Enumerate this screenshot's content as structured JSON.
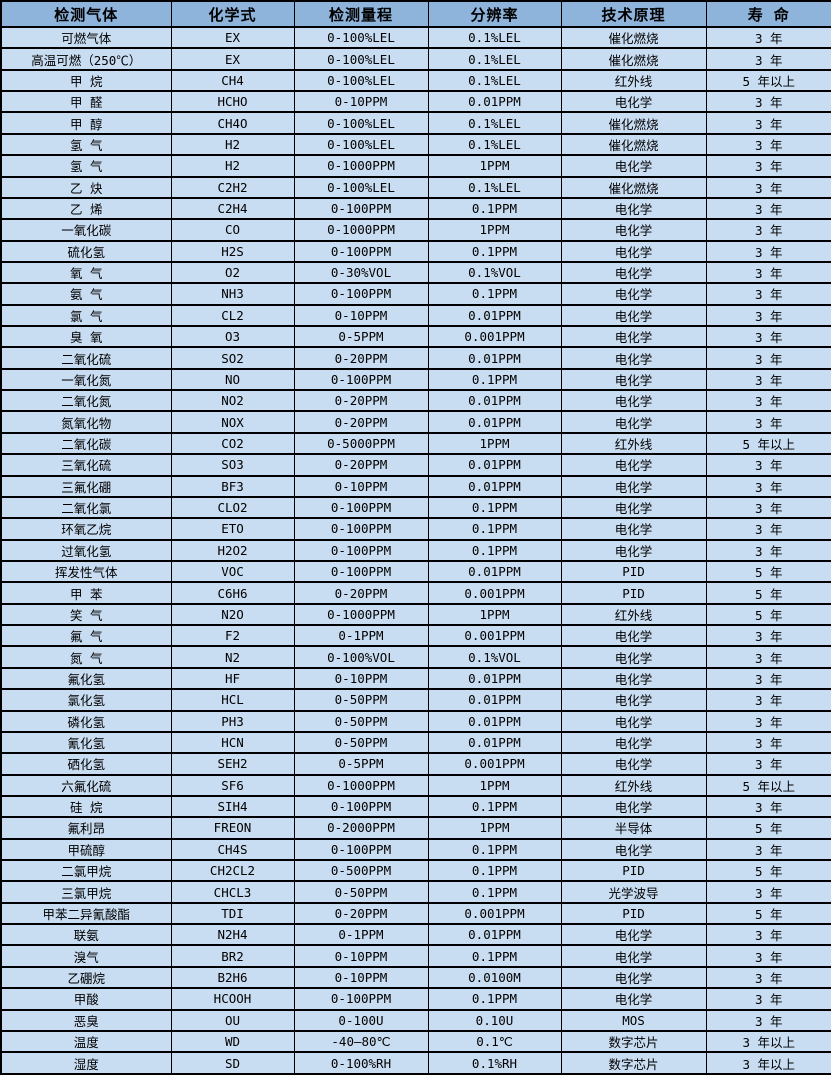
{
  "colors": {
    "header_bg": "#8eb4dc",
    "row_bg": "#c9ddf2",
    "border": "#000000",
    "text": "#000000"
  },
  "table": {
    "columns": [
      "检测气体",
      "化学式",
      "检测量程",
      "分辨率",
      "技术原理",
      "寿 命"
    ],
    "column_keys": [
      "gas",
      "formula",
      "range",
      "resolution",
      "principle",
      "lifespan"
    ],
    "rows": [
      [
        "可燃气体",
        "EX",
        "0-100%LEL",
        "0.1%LEL",
        "催化燃烧",
        "3 年"
      ],
      [
        "高温可燃（250℃）",
        "EX",
        "0-100%LEL",
        "0.1%LEL",
        "催化燃烧",
        "3 年"
      ],
      [
        "甲 烷",
        "CH4",
        "0-100%LEL",
        "0.1%LEL",
        "红外线",
        "5 年以上"
      ],
      [
        "甲 醛",
        "HCHO",
        "0-10PPM",
        "0.01PPM",
        "电化学",
        "3 年"
      ],
      [
        "甲 醇",
        "CH4O",
        "0-100%LEL",
        "0.1%LEL",
        "催化燃烧",
        "3 年"
      ],
      [
        "氢 气",
        "H2",
        "0-100%LEL",
        "0.1%LEL",
        "催化燃烧",
        "3 年"
      ],
      [
        "氢 气",
        "H2",
        "0-1000PPM",
        "1PPM",
        "电化学",
        "3 年"
      ],
      [
        "乙 炔",
        "C2H2",
        "0-100%LEL",
        "0.1%LEL",
        "催化燃烧",
        "3 年"
      ],
      [
        "乙 烯",
        "C2H4",
        "0-100PPM",
        "0.1PPM",
        "电化学",
        "3 年"
      ],
      [
        "一氧化碳",
        "CO",
        "0-1000PPM",
        "1PPM",
        "电化学",
        "3 年"
      ],
      [
        "硫化氢",
        "H2S",
        "0-100PPM",
        "0.1PPM",
        "电化学",
        "3 年"
      ],
      [
        "氧 气",
        "O2",
        "0-30%VOL",
        "0.1%VOL",
        "电化学",
        "3 年"
      ],
      [
        "氨 气",
        "NH3",
        "0-100PPM",
        "0.1PPM",
        "电化学",
        "3 年"
      ],
      [
        "氯 气",
        "CL2",
        "0-10PPM",
        "0.01PPM",
        "电化学",
        "3 年"
      ],
      [
        "臭 氧",
        "O3",
        "0-5PPM",
        "0.001PPM",
        "电化学",
        "3 年"
      ],
      [
        "二氧化硫",
        "SO2",
        "0-20PPM",
        "0.01PPM",
        "电化学",
        "3 年"
      ],
      [
        "一氧化氮",
        "NO",
        "0-100PPM",
        "0.1PPM",
        "电化学",
        "3 年"
      ],
      [
        "二氧化氮",
        "NO2",
        "0-20PPM",
        "0.01PPM",
        "电化学",
        "3 年"
      ],
      [
        "氮氧化物",
        "NOX",
        "0-20PPM",
        "0.01PPM",
        "电化学",
        "3 年"
      ],
      [
        "二氧化碳",
        "CO2",
        "0-5000PPM",
        "1PPM",
        "红外线",
        "5 年以上"
      ],
      [
        "三氧化硫",
        "SO3",
        "0-20PPM",
        "0.01PPM",
        "电化学",
        "3 年"
      ],
      [
        "三氟化硼",
        "BF3",
        "0-10PPM",
        "0.01PPM",
        "电化学",
        "3 年"
      ],
      [
        "二氧化氯",
        "CLO2",
        "0-100PPM",
        "0.1PPM",
        "电化学",
        "3 年"
      ],
      [
        "环氧乙烷",
        "ETO",
        "0-100PPM",
        "0.1PPM",
        "电化学",
        "3 年"
      ],
      [
        "过氧化氢",
        "H2O2",
        "0-100PPM",
        "0.1PPM",
        "电化学",
        "3 年"
      ],
      [
        "挥发性气体",
        "VOC",
        "0-100PPM",
        "0.01PPM",
        "PID",
        "5 年"
      ],
      [
        "甲 苯",
        "C6H6",
        "0-20PPM",
        "0.001PPM",
        "PID",
        "5 年"
      ],
      [
        "笑 气",
        "N2O",
        "0-1000PPM",
        "1PPM",
        "红外线",
        "5 年"
      ],
      [
        "氟 气",
        "F2",
        "0-1PPM",
        "0.001PPM",
        "电化学",
        "3 年"
      ],
      [
        "氮 气",
        "N2",
        "0-100%VOL",
        "0.1%VOL",
        "电化学",
        "3 年"
      ],
      [
        "氟化氢",
        "HF",
        "0-10PPM",
        "0.01PPM",
        "电化学",
        "3 年"
      ],
      [
        "氯化氢",
        "HCL",
        "0-50PPM",
        "0.01PPM",
        "电化学",
        "3 年"
      ],
      [
        "磷化氢",
        "PH3",
        "0-50PPM",
        "0.01PPM",
        "电化学",
        "3 年"
      ],
      [
        "氰化氢",
        "HCN",
        "0-50PPM",
        "0.01PPM",
        "电化学",
        "3 年"
      ],
      [
        "硒化氢",
        "SEH2",
        "0-5PPM",
        "0.001PPM",
        "电化学",
        "3 年"
      ],
      [
        "六氟化硫",
        "SF6",
        "0-1000PPM",
        "1PPM",
        "红外线",
        "5 年以上"
      ],
      [
        "硅 烷",
        "SIH4",
        "0-100PPM",
        "0.1PPM",
        "电化学",
        "3 年"
      ],
      [
        "氟利昂",
        "FREON",
        "0-2000PPM",
        "1PPM",
        "半导体",
        "5 年"
      ],
      [
        "甲硫醇",
        "CH4S",
        "0-100PPM",
        "0.1PPM",
        "电化学",
        "3 年"
      ],
      [
        "二氯甲烷",
        "CH2CL2",
        "0-500PPM",
        "0.1PPM",
        "PID",
        "5 年"
      ],
      [
        "三氯甲烷",
        "CHCL3",
        "0-50PPM",
        "0.1PPM",
        "光学波导",
        "3 年"
      ],
      [
        "甲苯二异氰酸酯",
        "TDI",
        "0-20PPM",
        "0.001PPM",
        "PID",
        "5 年"
      ],
      [
        "联氨",
        "N2H4",
        "0-1PPM",
        "0.01PPM",
        "电化学",
        "3 年"
      ],
      [
        "溴气",
        "BR2",
        "0-10PPM",
        "0.1PPM",
        "电化学",
        "3 年"
      ],
      [
        "乙硼烷",
        "B2H6",
        "0-10PPM",
        "0.0100M",
        "电化学",
        "3 年"
      ],
      [
        "甲酸",
        "HCOOH",
        "0-100PPM",
        "0.1PPM",
        "电化学",
        "3 年"
      ],
      [
        "恶臭",
        "OU",
        "0-100U",
        "0.10U",
        "MOS",
        "3 年"
      ],
      [
        "温度",
        "WD",
        "-40—80℃",
        "0.1℃",
        "数字芯片",
        "3 年以上"
      ],
      [
        "湿度",
        "SD",
        "0-100%RH",
        "0.1%RH",
        "数字芯片",
        "3 年以上"
      ]
    ]
  }
}
